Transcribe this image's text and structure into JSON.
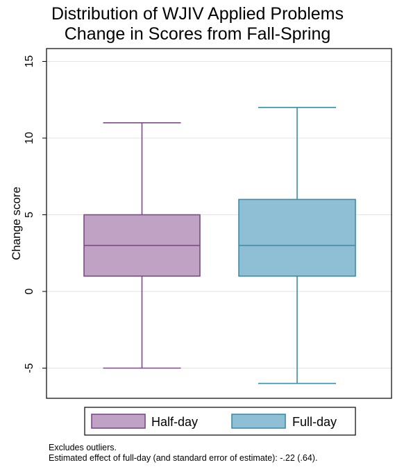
{
  "chart_data": {
    "type": "box",
    "title": [
      "Distribution of WJIV Applied Problems",
      "Change in Scores from Fall-Spring"
    ],
    "xlabel": "",
    "ylabel": "Change score",
    "ylim": [
      -7,
      16
    ],
    "yticks": [
      -5,
      0,
      5,
      10,
      15
    ],
    "grid": true,
    "legend_position": "bottom",
    "series": [
      {
        "name": "Half-day",
        "fill": "#c0a2c4",
        "stroke": "#7b4b87",
        "whisker_low": -5,
        "q1": 1,
        "median": 3,
        "q3": 5,
        "whisker_high": 11
      },
      {
        "name": "Full-day",
        "fill": "#8fbfd5",
        "stroke": "#3a8ea9",
        "whisker_low": -6,
        "q1": 1,
        "median": 3,
        "q3": 6,
        "whisker_high": 12
      }
    ],
    "notes": [
      "Excludes outliers.",
      "Estimated effect of full-day (and standard error of estimate): -.22 (.64)."
    ]
  }
}
